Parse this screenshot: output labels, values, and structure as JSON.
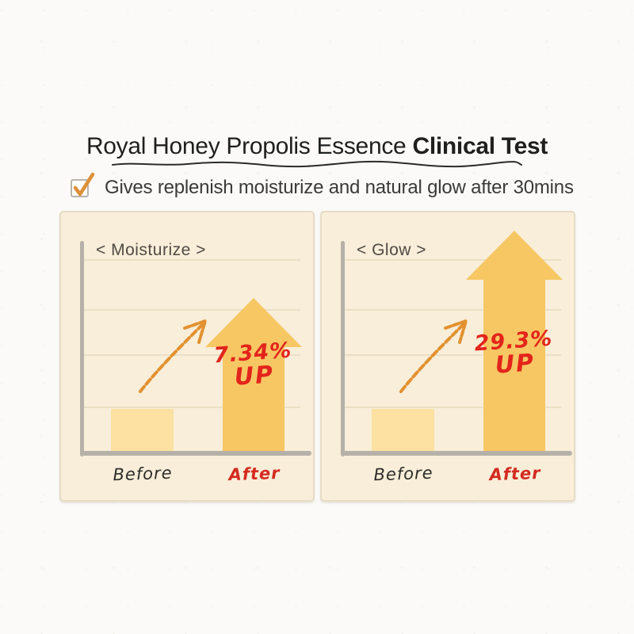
{
  "header": {
    "title_regular": "Royal Honey Propolis Essence ",
    "title_bold": "Clinical Test"
  },
  "claim": {
    "text": "Gives replenish moisturize and natural glow after 30mins"
  },
  "colors": {
    "c-panel": "#f8eed9",
    "c-panel-border": "#e7dcc4",
    "c-grid": "#eadfc6",
    "c-bar": "#fce1a2",
    "c-arrow": "#f7c763",
    "c-axis": "#b6b1a8",
    "c-red": "#e3241b",
    "c-red-label": "#d42a1f",
    "c-check-orange": "#dd9038",
    "c-sketch-orange": "#e29130"
  },
  "chart_data": [
    {
      "type": "bar",
      "title": "< Moisturize >",
      "categories": [
        "Before",
        "After"
      ],
      "before_label": "Before",
      "after_label": "After",
      "values_relative": [
        1,
        3.45
      ],
      "increase_percent": 7.34,
      "increase_label_line1": "7.34%",
      "increase_label_line2": "UP",
      "annotation": "hand-drawn rising arrow from Before to After",
      "grid": true,
      "legend": false
    },
    {
      "type": "bar",
      "title": "< Glow >",
      "categories": [
        "Before",
        "After"
      ],
      "before_label": "Before",
      "after_label": "After",
      "values_relative": [
        1,
        4.95
      ],
      "increase_percent": 29.3,
      "increase_label_line1": "29.3%",
      "increase_label_line2": "UP",
      "annotation": "hand-drawn rising arrow from Before to After",
      "grid": true,
      "legend": false
    }
  ]
}
